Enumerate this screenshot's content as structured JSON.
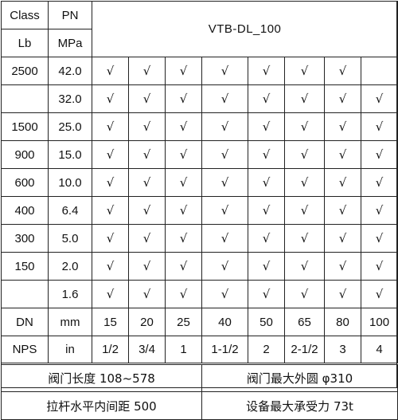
{
  "header": {
    "class_label": "Class",
    "lb_label": "Lb",
    "pn_label": "PN",
    "mpa_label": "MPa",
    "title": "VTB-DL_100"
  },
  "check_mark": "√",
  "rows": [
    {
      "class": "2500",
      "pn": "42.0",
      "checks": [
        true,
        true,
        true,
        true,
        true,
        true,
        true,
        false
      ]
    },
    {
      "class": "",
      "pn": "32.0",
      "checks": [
        true,
        true,
        true,
        true,
        true,
        true,
        true,
        true
      ]
    },
    {
      "class": "1500",
      "pn": "25.0",
      "checks": [
        true,
        true,
        true,
        true,
        true,
        true,
        true,
        true
      ]
    },
    {
      "class": "900",
      "pn": "15.0",
      "checks": [
        true,
        true,
        true,
        true,
        true,
        true,
        true,
        true
      ]
    },
    {
      "class": "600",
      "pn": "10.0",
      "checks": [
        true,
        true,
        true,
        true,
        true,
        true,
        true,
        true
      ]
    },
    {
      "class": "400",
      "pn": "6.4",
      "checks": [
        true,
        true,
        true,
        true,
        true,
        true,
        true,
        true
      ]
    },
    {
      "class": "300",
      "pn": "5.0",
      "checks": [
        true,
        true,
        true,
        true,
        true,
        true,
        true,
        true
      ]
    },
    {
      "class": "150",
      "pn": "2.0",
      "checks": [
        true,
        true,
        true,
        true,
        true,
        true,
        true,
        true
      ]
    },
    {
      "class": "",
      "pn": "1.6",
      "checks": [
        true,
        true,
        true,
        true,
        true,
        true,
        true,
        true
      ]
    }
  ],
  "dn_row": {
    "label": "DN",
    "unit": "mm",
    "sizes": [
      "15",
      "20",
      "25",
      "40",
      "50",
      "65",
      "80",
      "100"
    ]
  },
  "nps_row": {
    "label": "NPS",
    "unit": "in",
    "sizes": [
      "1/2",
      "3/4",
      "1",
      "1-1/2",
      "2",
      "2-1/2",
      "3",
      "4"
    ]
  },
  "footer": {
    "length": "阀门长度 108~578",
    "max_od": "阀门最大外圆 φ310",
    "rod_spacing": "拉杆水平内间距 500",
    "max_load": "设备最大承受力 73t"
  }
}
